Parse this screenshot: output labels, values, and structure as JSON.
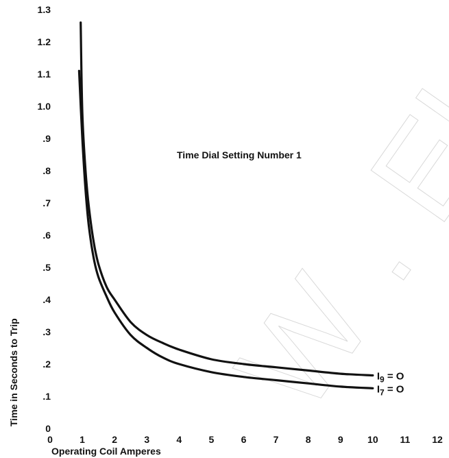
{
  "chart_data": {
    "type": "line",
    "title": "",
    "annotation": "Time Dial Setting Number 1",
    "xlabel": "Operating Coil Amperes",
    "ylabel": "Time in Seconds to Trip",
    "xlim": [
      0,
      12
    ],
    "ylim": [
      0,
      1.3
    ],
    "x_ticks": [
      "0",
      "1",
      "2",
      "3",
      "4",
      "5",
      "6",
      "7",
      "8",
      "9",
      "10",
      "11",
      "12"
    ],
    "y_ticks": [
      "0",
      ".1",
      ".2",
      ".3",
      ".4",
      ".5",
      ".6",
      ".7",
      ".8",
      ".9",
      "1.0",
      "1.1",
      "1.2",
      "1.3"
    ],
    "grid": false,
    "series": [
      {
        "name": "I9 = 0",
        "label_main": "I",
        "label_sub": "9",
        "label_rest": " = O",
        "x": [
          0.95,
          1.0,
          1.1,
          1.2,
          1.35,
          1.5,
          1.75,
          2.0,
          2.5,
          3.0,
          3.5,
          4.0,
          5.0,
          6.0,
          7.0,
          8.0,
          9.0,
          10.0
        ],
        "y": [
          1.26,
          0.98,
          0.8,
          0.69,
          0.58,
          0.51,
          0.44,
          0.4,
          0.33,
          0.29,
          0.265,
          0.245,
          0.215,
          0.2,
          0.19,
          0.18,
          0.17,
          0.165
        ]
      },
      {
        "name": "I7 = 0",
        "label_main": "I",
        "label_sub": "7",
        "label_rest": " = O",
        "x": [
          0.9,
          1.0,
          1.1,
          1.2,
          1.35,
          1.5,
          1.75,
          2.0,
          2.5,
          3.0,
          3.5,
          4.0,
          5.0,
          6.0,
          7.0,
          8.0,
          9.0,
          10.0
        ],
        "y": [
          1.11,
          0.9,
          0.74,
          0.63,
          0.53,
          0.47,
          0.41,
          0.36,
          0.29,
          0.25,
          0.22,
          0.2,
          0.175,
          0.16,
          0.15,
          0.14,
          0.13,
          0.125
        ]
      }
    ]
  },
  "watermark": {
    "text": "W . Electrical"
  }
}
